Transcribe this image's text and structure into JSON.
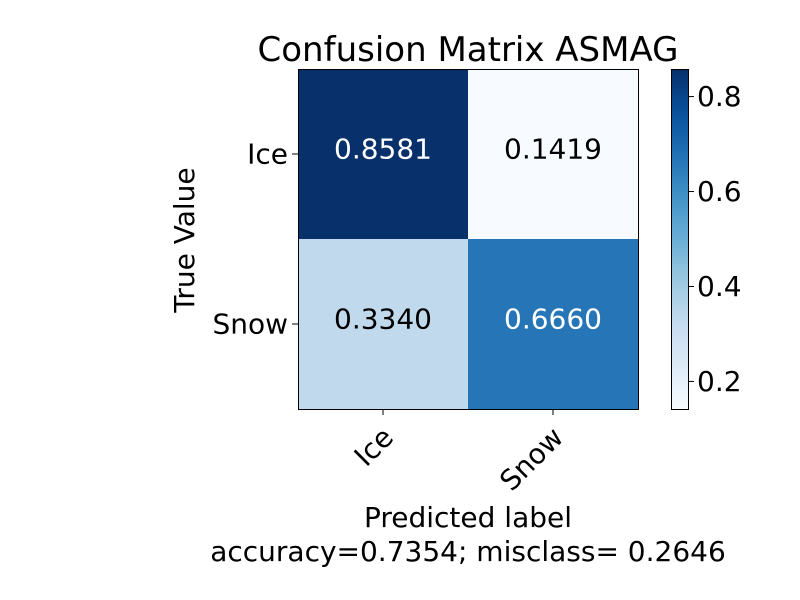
{
  "chart_data": {
    "type": "heatmap",
    "title": "Confusion Matrix ASMAG",
    "xlabel": "Predicted label",
    "ylabel": "True Value",
    "footer": "accuracy=0.7354; misclass= 0.2646",
    "x_categories": [
      "Ice",
      "Snow"
    ],
    "y_categories": [
      "Ice",
      "Snow"
    ],
    "values": [
      [
        0.8581,
        0.1419
      ],
      [
        0.334,
        0.666
      ]
    ],
    "cell_labels": [
      [
        "0.8581",
        "0.1419"
      ],
      [
        "0.3340",
        "0.6660"
      ]
    ],
    "colormap": "Blues",
    "colorbar": {
      "range": [
        0.1419,
        0.8581
      ],
      "ticks": [
        0.2,
        0.4,
        0.6,
        0.8
      ],
      "tick_labels": [
        "0.2",
        "0.4",
        "0.6",
        "0.8"
      ]
    }
  }
}
